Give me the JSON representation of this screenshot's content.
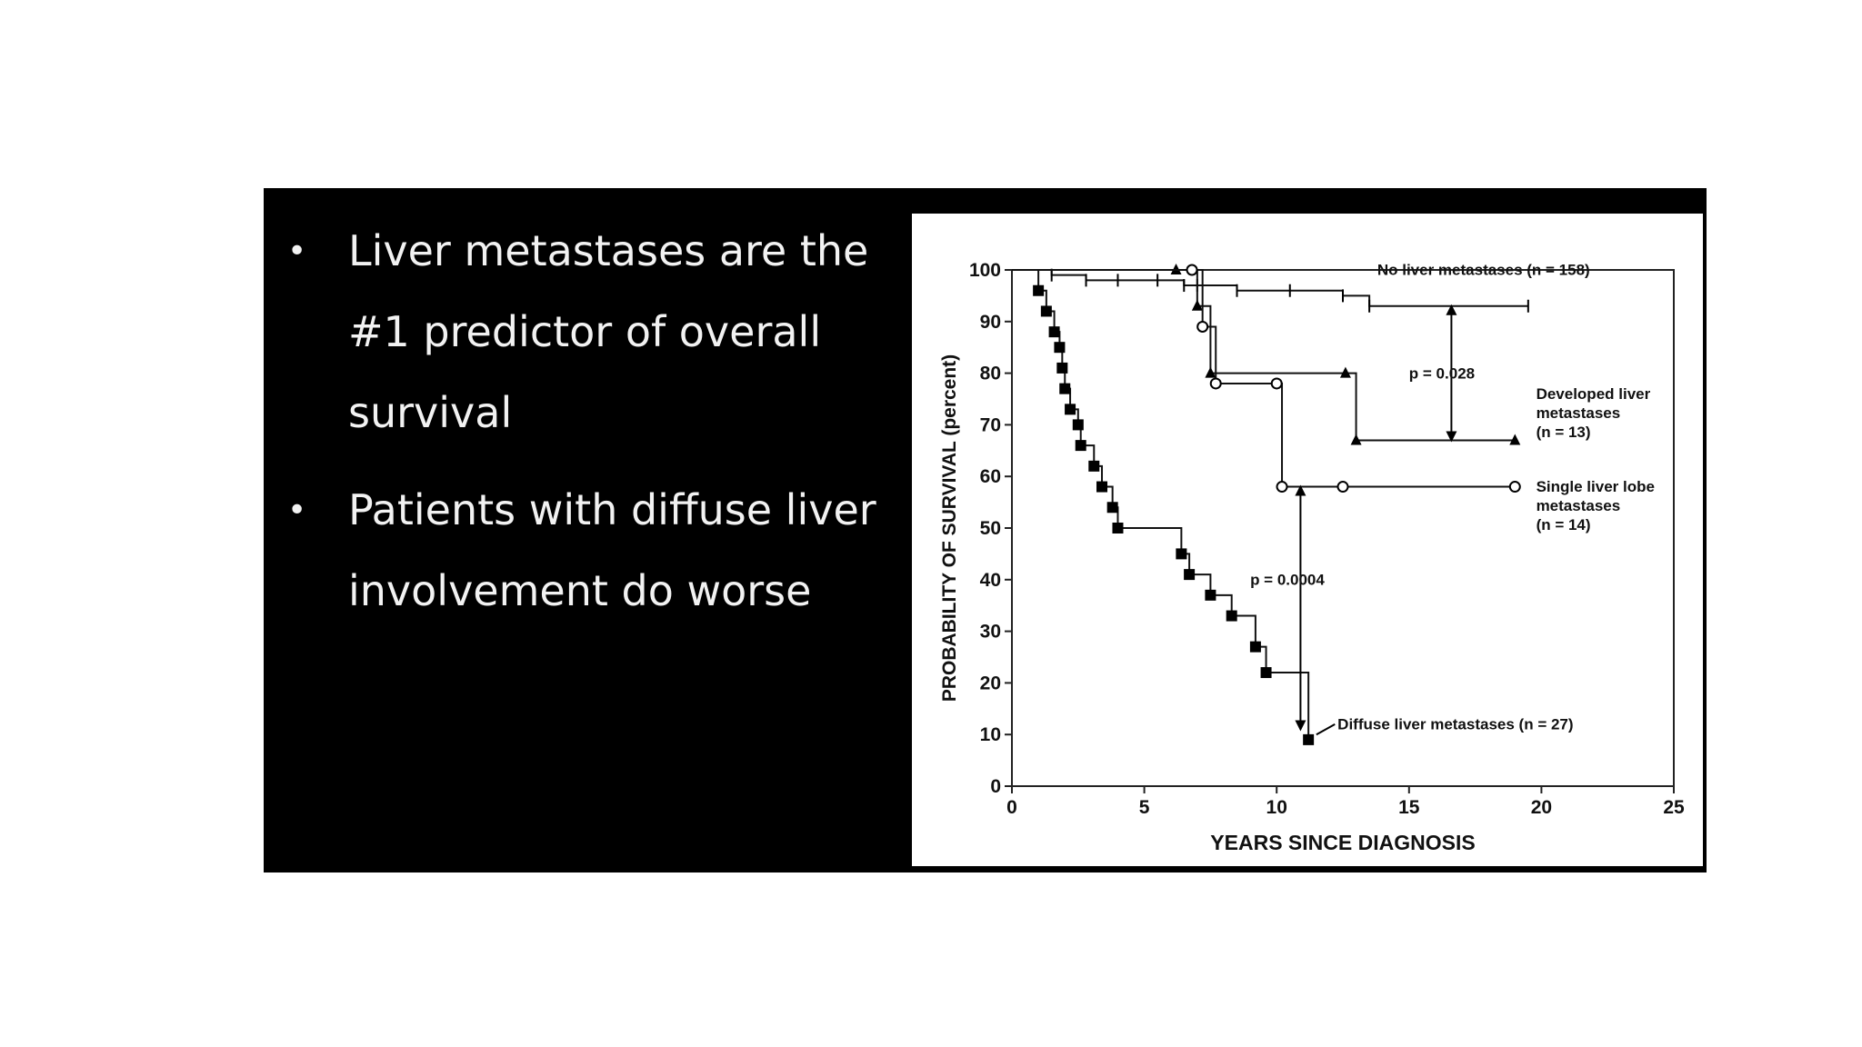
{
  "bullets": [
    "Liver metastases are the #1 predictor of overall survival",
    "Patients with diffuse liver involvement do worse"
  ],
  "chart_data": {
    "type": "line",
    "xlabel": "YEARS SINCE DIAGNOSIS",
    "ylabel": "PROBABILITY OF SURVIVAL (percent)",
    "xlim": [
      0,
      25
    ],
    "ylim": [
      0,
      100
    ],
    "xticks": [
      0,
      5,
      10,
      15,
      20,
      25
    ],
    "yticks": [
      0,
      10,
      20,
      30,
      40,
      50,
      60,
      70,
      80,
      90,
      100
    ],
    "grid": false,
    "series": [
      {
        "name": "No liver metastases (n = 158)",
        "label_lines": [
          "No liver metastases (n = 158)"
        ],
        "marker": "tick",
        "x": [
          0,
          1.5,
          2.8,
          4.0,
          5.5,
          6.5,
          7.0,
          8.5,
          10.5,
          12.5,
          13.5,
          19.5
        ],
        "y": [
          100,
          99,
          98,
          98,
          98,
          97,
          97,
          96,
          96,
          95,
          93,
          93
        ]
      },
      {
        "name": "Developed liver metastases (n = 13)",
        "label_lines": [
          "Developed liver",
          "metastases",
          "(n = 13)"
        ],
        "marker": "triangle",
        "x": [
          0,
          6.2,
          7.0,
          7.5,
          12.6,
          13.0,
          19.0
        ],
        "y": [
          100,
          100,
          93,
          80,
          80,
          67,
          67
        ]
      },
      {
        "name": "Single liver lobe metastases (n = 14)",
        "label_lines": [
          "Single liver lobe",
          "metastases",
          "(n = 14)"
        ],
        "marker": "circle",
        "x": [
          0,
          6.8,
          7.2,
          7.7,
          10.0,
          10.2,
          12.5,
          19.0
        ],
        "y": [
          100,
          100,
          89,
          78,
          78,
          58,
          58,
          58
        ]
      },
      {
        "name": "Diffuse liver metastases (n = 27)",
        "label_lines": [
          "Diffuse liver metastases (n = 27)"
        ],
        "marker": "square",
        "x": [
          0.9,
          1.0,
          1.3,
          1.6,
          1.8,
          1.9,
          2.0,
          2.2,
          2.5,
          2.6,
          3.1,
          3.4,
          3.8,
          4.0,
          6.4,
          6.7,
          7.5,
          8.3,
          9.2,
          9.6,
          11.2
        ],
        "y": [
          100,
          96,
          92,
          88,
          85,
          81,
          77,
          73,
          70,
          66,
          62,
          58,
          54,
          50,
          45,
          41,
          37,
          33,
          27,
          22,
          9
        ]
      }
    ],
    "annotations": [
      {
        "text": "p = 0.028",
        "x": 16.5,
        "y": 80
      },
      {
        "text": "p = 0.0004",
        "x": 11.0,
        "y": 40
      }
    ]
  }
}
